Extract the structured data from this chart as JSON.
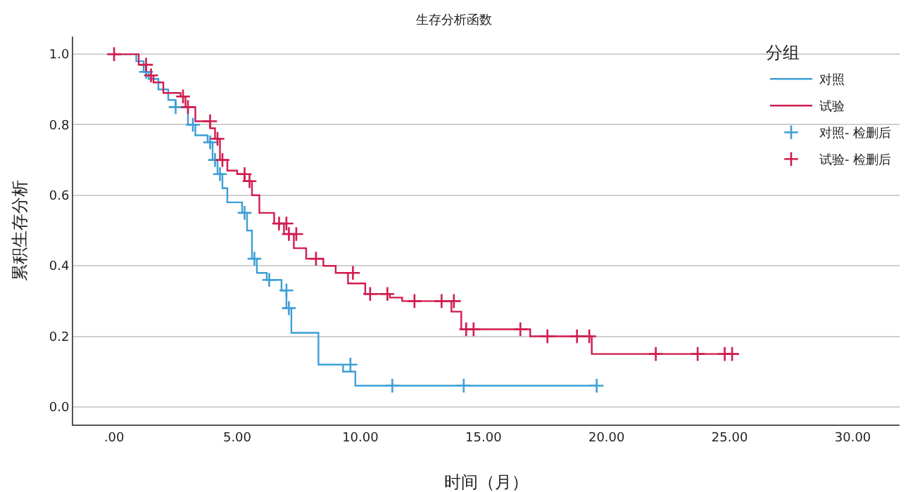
{
  "chart_data": {
    "type": "step",
    "title": "生存分析函数",
    "xlabel": "时间（月）",
    "ylabel": "累积生存分析",
    "legend_title": "分组",
    "xlim": [
      -1.66,
      31.9
    ],
    "ylim": [
      -0.05,
      1.05
    ],
    "xticks": [
      {
        "value": 0,
        "label": ".00"
      },
      {
        "value": 5,
        "label": "5.00"
      },
      {
        "value": 10,
        "label": "10.00"
      },
      {
        "value": 15,
        "label": "15.00"
      },
      {
        "value": 20,
        "label": "20.00"
      },
      {
        "value": 25,
        "label": "25.00"
      },
      {
        "value": 30,
        "label": "30.00"
      }
    ],
    "yticks": [
      {
        "value": 0,
        "label": "0.0"
      },
      {
        "value": 0.2,
        "label": "0.2"
      },
      {
        "value": 0.4,
        "label": "0.4"
      },
      {
        "value": 0.6,
        "label": "0.6"
      },
      {
        "value": 0.8,
        "label": "0.8"
      },
      {
        "value": 1,
        "label": "1.0"
      }
    ],
    "grid": "y",
    "legend": "top right",
    "series": [
      {
        "name": "对照",
        "type": "step",
        "color": "#3d9fd6",
        "marker": "none",
        "x": [
          0,
          0.9,
          1.2,
          1.4,
          1.8,
          2.2,
          2.5,
          3.0,
          3.3,
          3.8,
          4.0,
          4.2,
          4.4,
          4.6,
          5.2,
          5.4,
          5.6,
          5.8,
          6.2,
          6.8,
          7.0,
          7.2,
          8.3,
          9.3,
          9.8,
          19.6
        ],
        "values": [
          1.0,
          0.98,
          0.95,
          0.93,
          0.9,
          0.87,
          0.85,
          0.8,
          0.77,
          0.75,
          0.7,
          0.66,
          0.62,
          0.58,
          0.55,
          0.5,
          0.42,
          0.38,
          0.36,
          0.33,
          0.28,
          0.21,
          0.12,
          0.1,
          0.06,
          0.06
        ]
      },
      {
        "name": "试验",
        "type": "step",
        "color": "#d01c4f",
        "marker": "none",
        "x": [
          0,
          1.0,
          1.3,
          1.6,
          2.0,
          2.7,
          2.9,
          3.3,
          3.9,
          4.1,
          4.3,
          4.6,
          5.0,
          5.3,
          5.6,
          5.9,
          6.5,
          6.9,
          7.3,
          7.8,
          8.5,
          9.0,
          9.5,
          10.2,
          11.2,
          11.7,
          13.7,
          14.1,
          16.9,
          19.4,
          25.1
        ],
        "values": [
          1.0,
          0.97,
          0.94,
          0.92,
          0.89,
          0.88,
          0.85,
          0.81,
          0.79,
          0.76,
          0.7,
          0.67,
          0.66,
          0.64,
          0.6,
          0.55,
          0.52,
          0.49,
          0.45,
          0.42,
          0.4,
          0.38,
          0.35,
          0.32,
          0.31,
          0.3,
          0.27,
          0.22,
          0.2,
          0.15,
          0.15
        ]
      },
      {
        "name": "对照- 检删后",
        "type": "scatter",
        "color": "#3d9fd6",
        "marker": "cross",
        "x": [
          1.3,
          2.5,
          3.2,
          3.9,
          4.1,
          4.3,
          5.3,
          5.7,
          6.3,
          7.0,
          7.1,
          9.6,
          11.3,
          14.2,
          19.6
        ],
        "values": [
          0.95,
          0.85,
          0.8,
          0.75,
          0.7,
          0.66,
          0.55,
          0.42,
          0.36,
          0.33,
          0.28,
          0.12,
          0.06,
          0.06,
          0.06
        ]
      },
      {
        "name": "试验- 检删后",
        "type": "scatter",
        "color": "#d01c4f",
        "marker": "cross",
        "x": [
          0,
          1.3,
          1.5,
          2.8,
          3.0,
          3.9,
          4.2,
          4.4,
          5.3,
          5.5,
          6.7,
          7.0,
          7.1,
          7.4,
          8.2,
          9.7,
          10.4,
          11.1,
          12.2,
          13.3,
          13.8,
          14.3,
          14.6,
          16.5,
          17.6,
          18.8,
          19.3,
          22.0,
          23.7,
          24.8,
          25.1
        ],
        "values": [
          1.0,
          0.97,
          0.94,
          0.88,
          0.85,
          0.81,
          0.76,
          0.7,
          0.66,
          0.64,
          0.52,
          0.52,
          0.49,
          0.49,
          0.42,
          0.38,
          0.32,
          0.32,
          0.3,
          0.3,
          0.3,
          0.22,
          0.22,
          0.22,
          0.2,
          0.2,
          0.2,
          0.15,
          0.15,
          0.15,
          0.15
        ]
      }
    ]
  }
}
